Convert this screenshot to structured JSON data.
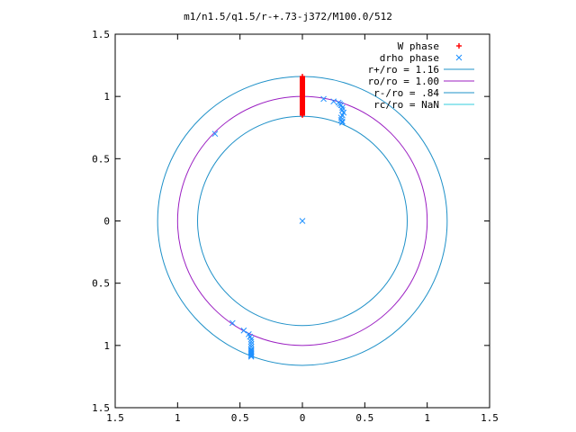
{
  "chart_data": {
    "type": "scatter",
    "title": "m1/n1.5/q1.5/r-+.73-j372/M100.0/512",
    "xlabel": "",
    "ylabel": "",
    "xlim": [
      -1.5,
      1.5
    ],
    "ylim": [
      -1.5,
      1.5
    ],
    "grid": false,
    "legend_position": "top-right",
    "x_tick_values": [
      -1.5,
      -1,
      -0.5,
      0,
      0.5,
      1,
      1.5
    ],
    "x_tick_labels": [
      "1.5",
      "1",
      "0.5",
      "0",
      "0.5",
      "1",
      "1.5"
    ],
    "y_tick_values": [
      1.5,
      1,
      0.5,
      0,
      -0.5,
      -1,
      -1.5
    ],
    "y_tick_labels": [
      "1.5",
      "1",
      "0.5",
      "0",
      "0.5",
      "1",
      "1.5"
    ],
    "circles": [
      {
        "name": "r+/ro = 1.16",
        "radius": 1.16,
        "color": "#1e90c8"
      },
      {
        "name": "ro/ro = 1.00",
        "radius": 1.0,
        "color": "#9b1fc2"
      },
      {
        "name": "r-/ro =  .84",
        "radius": 0.84,
        "color": "#1e90c8"
      },
      {
        "name": "rc/ro = NaN",
        "radius": null,
        "color": "#33ccdd"
      }
    ],
    "series": [
      {
        "name": "W phase",
        "marker": "+",
        "color": "#ff0000",
        "x": [
          0,
          0,
          0,
          0,
          0,
          0,
          0,
          0,
          0,
          0,
          0,
          0,
          0,
          0,
          0,
          0,
          0,
          0,
          0,
          0,
          0,
          0,
          0,
          0,
          0,
          0,
          0,
          0,
          0,
          0,
          0,
          0
        ],
        "y": [
          0.85,
          0.86,
          0.87,
          0.88,
          0.89,
          0.9,
          0.91,
          0.92,
          0.93,
          0.94,
          0.95,
          0.96,
          0.97,
          0.98,
          0.99,
          1.0,
          1.01,
          1.02,
          1.03,
          1.04,
          1.05,
          1.06,
          1.07,
          1.08,
          1.09,
          1.1,
          1.11,
          1.12,
          1.13,
          1.14,
          1.15,
          1.16
        ]
      },
      {
        "name": "drho phase",
        "marker": "x",
        "color": "#1e90ff",
        "x": [
          -0.7,
          0.17,
          0.25,
          0.29,
          0.3,
          0.31,
          0.32,
          0.32,
          0.33,
          0.32,
          0.31,
          0.31,
          0.32,
          0.32,
          -0.56,
          -0.47,
          -0.43,
          -0.42,
          -0.41,
          -0.41,
          -0.41,
          -0.41,
          -0.41,
          -0.41,
          -0.41,
          -0.41,
          -0.41,
          -0.41,
          -0.41,
          0.0
        ],
        "y": [
          0.7,
          0.98,
          0.96,
          0.95,
          0.94,
          0.93,
          0.91,
          0.89,
          0.87,
          0.85,
          0.83,
          0.81,
          0.8,
          0.79,
          -0.82,
          -0.88,
          -0.91,
          -0.93,
          -0.95,
          -0.97,
          -0.99,
          -1.01,
          -1.03,
          -1.04,
          -1.05,
          -1.06,
          -1.07,
          -1.08,
          -1.09,
          0.0
        ]
      }
    ]
  }
}
